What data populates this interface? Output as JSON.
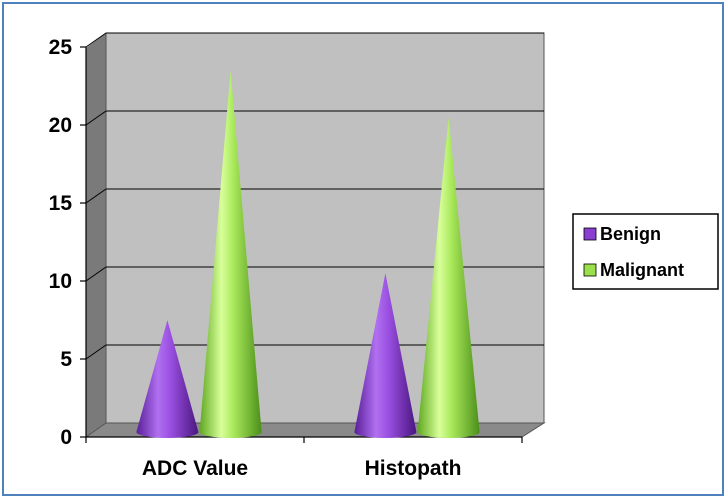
{
  "chart_data": {
    "type": "bar",
    "shape": "cone",
    "title": "",
    "xlabel": "",
    "ylabel": "",
    "categories": [
      "ADC Value",
      "Histopath"
    ],
    "series": [
      {
        "name": "Benign",
        "values": [
          7,
          10
        ],
        "color": "#8a3fd1"
      },
      {
        "name": "Malignant",
        "values": [
          23,
          20
        ],
        "color": "#99e04a"
      }
    ],
    "ylim": [
      0,
      25
    ],
    "yticks": [
      0,
      5,
      10,
      15,
      20,
      25
    ],
    "grid": true,
    "legend_position": "right",
    "colors": {
      "wall": "#c0c0c0",
      "frame": "#4f81bd"
    }
  }
}
